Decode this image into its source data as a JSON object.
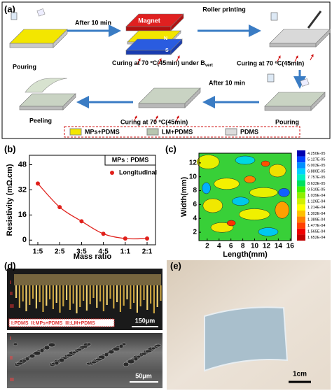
{
  "panel_labels": [
    "(a)",
    "(b)",
    "(c)",
    "(d)",
    "(e)"
  ],
  "panel_a": {
    "pouring_1": "Pouring",
    "arrow_1": "After 10 min",
    "magnet": "Magnet",
    "pole_n": "N",
    "pole_s": "S",
    "curing_1": "Curing at 70 ºC(45min) under B",
    "curing_1_sub": "vert",
    "arrow_2": "Roller printing",
    "curing_2": "Curing at 70 ºC(45min)",
    "arrow_3": "After 10 min",
    "pouring_2": "Pouring",
    "curing_3": "Curing at 70 ºC(45min)",
    "peeling": "Peeling",
    "legend": [
      "MPs+PDMS",
      "LM+PDMS",
      "PDMS"
    ]
  },
  "chart_data": [
    {
      "type": "line",
      "box_label": "MPs : PDMS",
      "xlabel": "Mass ratio",
      "ylabel": "Resistivity (mΩ.cm)",
      "categories": [
        "1:5",
        "2:5",
        "3:5",
        "4:5",
        "1:1",
        "2:1"
      ],
      "series": [
        {
          "name": "Longitudinal",
          "color": "#e0201b",
          "values": [
            36,
            21,
            12,
            4,
            1,
            1
          ]
        }
      ],
      "ylim": [
        -3,
        54
      ],
      "yticks": [
        0,
        16,
        32,
        48
      ]
    },
    {
      "type": "contour",
      "xlabel": "Length(mm)",
      "ylabel": "Width(mm)",
      "xlim": [
        0.6,
        16.2
      ],
      "ylim": [
        0.8,
        13.4
      ],
      "xticks": [
        2,
        4,
        6,
        8,
        10,
        12,
        14,
        16
      ],
      "yticks": [
        2,
        4,
        6,
        8,
        10,
        12
      ],
      "colorbar_labels": [
        "4.250E-05",
        "5.127E-05",
        "6.003E-05",
        "6.880E-05",
        "7.757E-05",
        "8.633E-05",
        "9.510E-05",
        "1.039E-04",
        "1.126E-04",
        "1.214E-04",
        "1.302E-04",
        "1.389E-04",
        "1.477E-04",
        "1.565E-04",
        "1.652E-04"
      ]
    }
  ],
  "panel_d": {
    "layers": [
      "I",
      "II",
      "III"
    ],
    "legend": "I:PDMS  II:MPs+PDMS  III:LM+PDMS",
    "scale_top": "150μm",
    "scale_bottom": "50μm"
  },
  "panel_e": {
    "scale": "1cm"
  }
}
